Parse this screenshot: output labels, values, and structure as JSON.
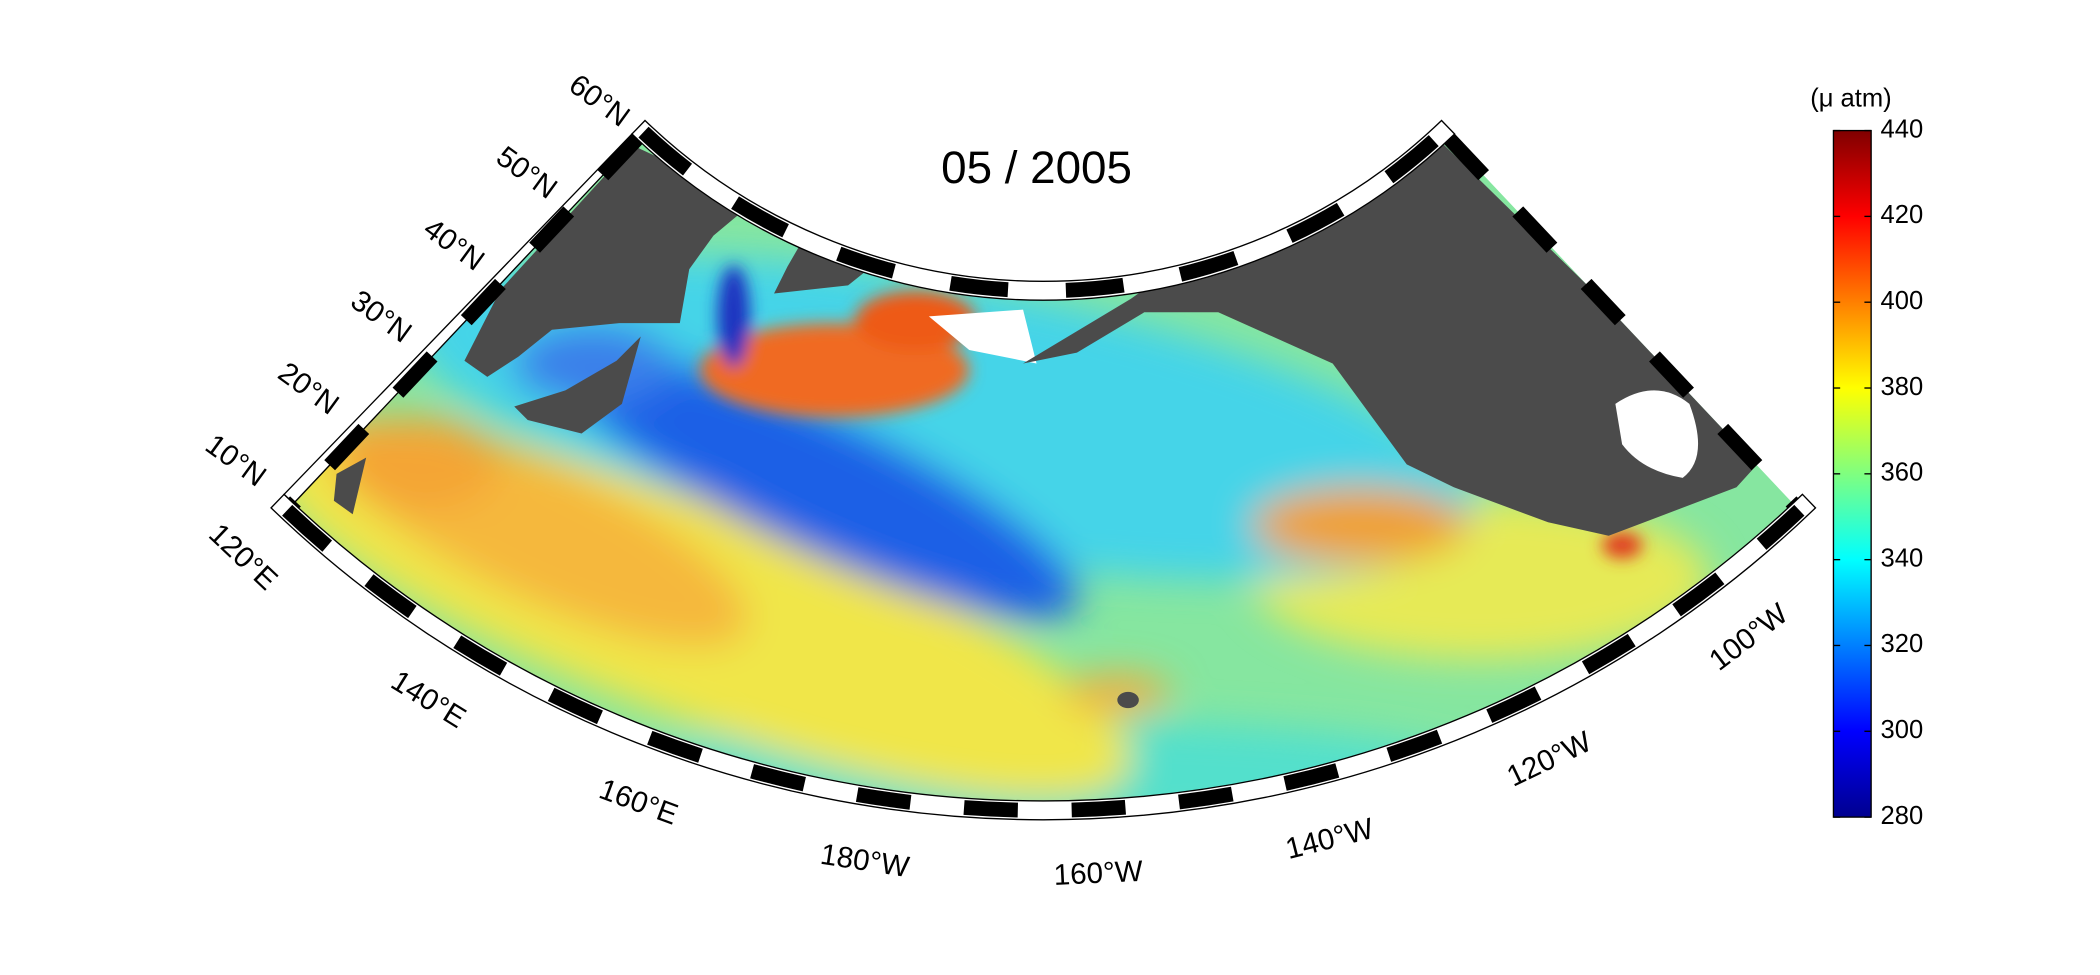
{
  "map": {
    "title": "05 / 2005",
    "colorbar": {
      "label": "(μ atm)",
      "lim": [
        280,
        440
      ],
      "ticks": [
        280,
        300,
        320,
        340,
        360,
        380,
        400,
        420,
        440
      ]
    },
    "lat_labels": [
      "10°N",
      "20°N",
      "30°N",
      "40°N",
      "50°N",
      "60°N"
    ],
    "lon_labels": [
      "120°E",
      "140°E",
      "160°E",
      "180°W",
      "160°W",
      "140°W",
      "120°W",
      "100°W"
    ]
  }
}
